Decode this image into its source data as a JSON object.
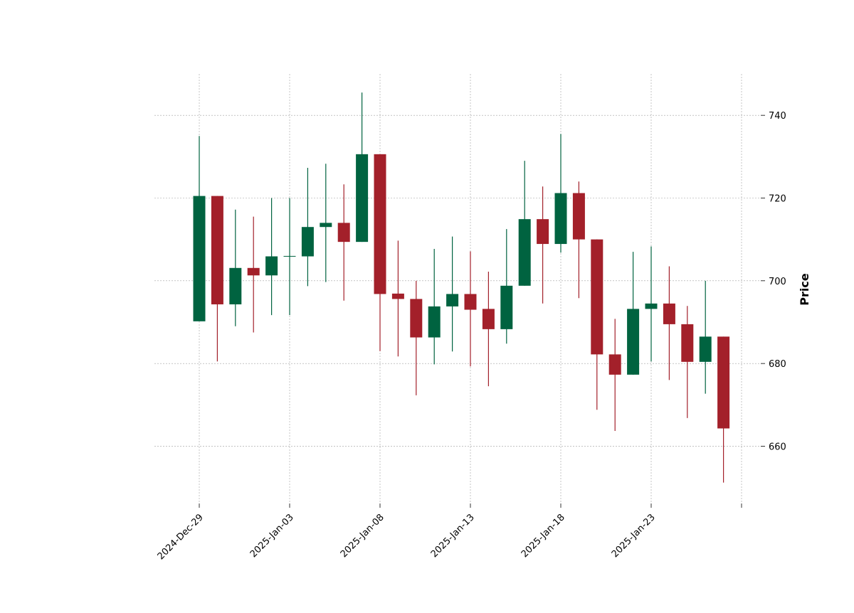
{
  "chart_data": {
    "type": "candlestick",
    "title": "",
    "xlabel": "",
    "ylabel": "Price",
    "ylim": [
      646.5,
      750
    ],
    "y_ticks": [
      660,
      680,
      700,
      720,
      740
    ],
    "y_tick_labels": [
      "660",
      "680",
      "700",
      "720",
      "740"
    ],
    "x_tick_labels": [
      "2024-Dec-29",
      "2025-Jan-03",
      "2025-Jan-08",
      "2025-Jan-13",
      "2025-Jan-18",
      "2025-Jan-23"
    ],
    "grid": true,
    "colors": {
      "up": "#006340",
      "down": "#a3202a",
      "grid": "#a0a0a0"
    },
    "candles": [
      {
        "date": "2024-12-29",
        "open": 690.2,
        "high": 735.0,
        "low": 690.2,
        "close": 720.5
      },
      {
        "date": "2024-12-30",
        "open": 720.5,
        "high": 720.5,
        "low": 680.5,
        "close": 694.3
      },
      {
        "date": "2024-12-31",
        "open": 694.3,
        "high": 717.2,
        "low": 689.0,
        "close": 703.1
      },
      {
        "date": "2025-01-01",
        "open": 703.1,
        "high": 715.5,
        "low": 687.5,
        "close": 701.3
      },
      {
        "date": "2025-01-02",
        "open": 701.3,
        "high": 720.0,
        "low": 691.7,
        "close": 705.9
      },
      {
        "date": "2025-01-03",
        "open": 705.9,
        "high": 720.0,
        "low": 691.7,
        "close": 706.0
      },
      {
        "date": "2025-01-04",
        "open": 705.9,
        "high": 727.3,
        "low": 698.7,
        "close": 713.0
      },
      {
        "date": "2025-01-05",
        "open": 713.0,
        "high": 728.3,
        "low": 699.7,
        "close": 714.0
      },
      {
        "date": "2025-01-06",
        "open": 714.0,
        "high": 723.3,
        "low": 695.2,
        "close": 709.4
      },
      {
        "date": "2025-01-07",
        "open": 709.4,
        "high": 745.5,
        "low": 709.4,
        "close": 730.6
      },
      {
        "date": "2025-01-08",
        "open": 730.6,
        "high": 730.6,
        "low": 683.0,
        "close": 696.8
      },
      {
        "date": "2025-01-09",
        "open": 696.9,
        "high": 709.7,
        "low": 681.7,
        "close": 695.6
      },
      {
        "date": "2025-01-10",
        "open": 695.6,
        "high": 700.0,
        "low": 672.3,
        "close": 686.3
      },
      {
        "date": "2025-01-11",
        "open": 686.3,
        "high": 707.7,
        "low": 679.8,
        "close": 693.8
      },
      {
        "date": "2025-01-12",
        "open": 693.8,
        "high": 710.7,
        "low": 682.9,
        "close": 696.8
      },
      {
        "date": "2025-01-13",
        "open": 696.8,
        "high": 707.1,
        "low": 679.3,
        "close": 693.0
      },
      {
        "date": "2025-01-14",
        "open": 693.2,
        "high": 702.2,
        "low": 674.5,
        "close": 688.3
      },
      {
        "date": "2025-01-15",
        "open": 688.3,
        "high": 712.5,
        "low": 684.8,
        "close": 698.8
      },
      {
        "date": "2025-01-16",
        "open": 698.8,
        "high": 729.0,
        "low": 698.8,
        "close": 714.9
      },
      {
        "date": "2025-01-17",
        "open": 714.9,
        "high": 722.8,
        "low": 694.5,
        "close": 708.9
      },
      {
        "date": "2025-01-18",
        "open": 708.9,
        "high": 735.5,
        "low": 706.8,
        "close": 721.2
      },
      {
        "date": "2025-01-19",
        "open": 721.2,
        "high": 724.0,
        "low": 695.8,
        "close": 710.0
      },
      {
        "date": "2025-01-20",
        "open": 710.0,
        "high": 710.0,
        "low": 668.8,
        "close": 682.2
      },
      {
        "date": "2025-01-21",
        "open": 682.2,
        "high": 690.8,
        "low": 663.7,
        "close": 677.3
      },
      {
        "date": "2025-01-22",
        "open": 677.3,
        "high": 707.0,
        "low": 677.3,
        "close": 693.2
      },
      {
        "date": "2025-01-23",
        "open": 693.2,
        "high": 708.3,
        "low": 680.5,
        "close": 694.5
      },
      {
        "date": "2025-01-24",
        "open": 694.5,
        "high": 703.5,
        "low": 676.0,
        "close": 689.5
      },
      {
        "date": "2025-01-25",
        "open": 689.5,
        "high": 693.9,
        "low": 666.8,
        "close": 680.4
      },
      {
        "date": "2025-01-26",
        "open": 680.4,
        "high": 700.0,
        "low": 672.7,
        "close": 686.5
      },
      {
        "date": "2025-01-27",
        "open": 686.5,
        "high": 686.5,
        "low": 651.2,
        "close": 664.3
      }
    ]
  }
}
